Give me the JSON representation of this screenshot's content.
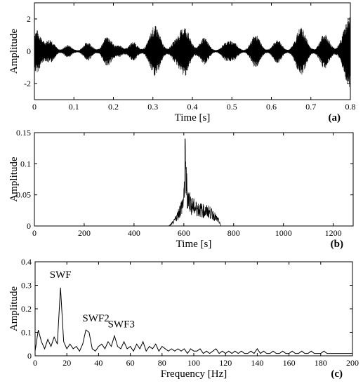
{
  "chart_data": [
    {
      "type": "line",
      "panel_label": "(a)",
      "xlabel": "Time [s]",
      "ylabel": "Amplitude",
      "xlim": [
        0,
        0.8
      ],
      "ylim": [
        -3,
        3
      ],
      "xticks": [
        "0",
        "0.1",
        "0.2",
        "0.3",
        "0.4",
        "0.5",
        "0.6",
        "0.7",
        "0.8"
      ],
      "yticks": [
        "-2",
        "0",
        "2"
      ],
      "bursts": [
        {
          "t": 0.005,
          "amp": 1.3
        },
        {
          "t": 0.04,
          "amp": 0.7
        },
        {
          "t": 0.085,
          "amp": 0.35
        },
        {
          "t": 0.135,
          "amp": 0.55
        },
        {
          "t": 0.185,
          "amp": 0.9
        },
        {
          "t": 0.215,
          "amp": 0.3
        },
        {
          "t": 0.25,
          "amp": 0.55
        },
        {
          "t": 0.305,
          "amp": 1.55
        },
        {
          "t": 0.355,
          "amp": 0.45
        },
        {
          "t": 0.38,
          "amp": 1.5
        },
        {
          "t": 0.43,
          "amp": 0.8
        },
        {
          "t": 0.485,
          "amp": 0.5
        },
        {
          "t": 0.505,
          "amp": 0.5
        },
        {
          "t": 0.56,
          "amp": 1.0
        },
        {
          "t": 0.615,
          "amp": 0.7
        },
        {
          "t": 0.675,
          "amp": 1.45
        },
        {
          "t": 0.735,
          "amp": 1.05
        },
        {
          "t": 0.798,
          "amp": 2.2
        }
      ]
    },
    {
      "type": "line",
      "panel_label": "(b)",
      "xlabel": "Time [s]",
      "ylabel": "Amplitude",
      "xlim": [
        0,
        1280
      ],
      "ylim": [
        0,
        0.15
      ],
      "xticks": [
        "0",
        "200",
        "400",
        "600",
        "800",
        "1000",
        "1200"
      ],
      "yticks": [
        "0",
        "0.05",
        "0.1",
        "0.15"
      ],
      "envelope": [
        [
          540,
          0
        ],
        [
          560,
          0.01
        ],
        [
          575,
          0.025
        ],
        [
          590,
          0.045
        ],
        [
          600,
          0.06
        ],
        [
          605,
          0.14
        ],
        [
          615,
          0.07
        ],
        [
          630,
          0.05
        ],
        [
          645,
          0.042
        ],
        [
          660,
          0.04
        ],
        [
          680,
          0.035
        ],
        [
          700,
          0.034
        ],
        [
          720,
          0.025
        ],
        [
          740,
          0.012
        ],
        [
          750,
          0
        ]
      ]
    },
    {
      "type": "line",
      "panel_label": "(c)",
      "xlabel": "Frequency [Hz]",
      "ylabel": "Amplitude",
      "xlim": [
        0,
        200
      ],
      "ylim": [
        0,
        0.4
      ],
      "xticks": [
        "0",
        "20",
        "40",
        "60",
        "80",
        "100",
        "120",
        "140",
        "160",
        "180",
        "200"
      ],
      "yticks": [
        "0",
        "0.1",
        "0.2",
        "0.3",
        "0.4"
      ],
      "annotations": [
        {
          "text": "SWF",
          "x": 16,
          "y": 0.29
        },
        {
          "text": "SWF2",
          "x": 33,
          "y": 0.11
        },
        {
          "text": "SWF3",
          "x": 49,
          "y": 0.085
        }
      ],
      "x": [
        0,
        2,
        4,
        6,
        8,
        10,
        12,
        14,
        16,
        18,
        20,
        22,
        24,
        26,
        28,
        30,
        32,
        34,
        36,
        38,
        40,
        42,
        44,
        46,
        48,
        50,
        52,
        54,
        56,
        58,
        60,
        62,
        64,
        66,
        68,
        70,
        72,
        74,
        76,
        78,
        80,
        82,
        84,
        86,
        88,
        90,
        92,
        94,
        96,
        98,
        100,
        102,
        104,
        106,
        108,
        110,
        112,
        114,
        116,
        118,
        120,
        122,
        124,
        126,
        128,
        130,
        132,
        134,
        136,
        138,
        140,
        142,
        144,
        146,
        148,
        150,
        152,
        154,
        156,
        158,
        160,
        162,
        164,
        166,
        168,
        170,
        172,
        174,
        176,
        178,
        180,
        182,
        184,
        186,
        188,
        190,
        192,
        194,
        196,
        198,
        200
      ],
      "y": [
        0.02,
        0.11,
        0.06,
        0.03,
        0.07,
        0.04,
        0.08,
        0.05,
        0.29,
        0.06,
        0.03,
        0.05,
        0.03,
        0.04,
        0.02,
        0.05,
        0.11,
        0.1,
        0.03,
        0.02,
        0.04,
        0.05,
        0.03,
        0.06,
        0.04,
        0.085,
        0.04,
        0.03,
        0.06,
        0.03,
        0.04,
        0.02,
        0.05,
        0.03,
        0.06,
        0.02,
        0.04,
        0.03,
        0.05,
        0.02,
        0.04,
        0.03,
        0.02,
        0.03,
        0.02,
        0.03,
        0.02,
        0.03,
        0.01,
        0.03,
        0.02,
        0.02,
        0.03,
        0.01,
        0.02,
        0.01,
        0.02,
        0.03,
        0.01,
        0.02,
        0.01,
        0.02,
        0.01,
        0.02,
        0.01,
        0.02,
        0.01,
        0.01,
        0.02,
        0.01,
        0.03,
        0.01,
        0.02,
        0.01,
        0.01,
        0.02,
        0.01,
        0.01,
        0.02,
        0.01,
        0.01,
        0.02,
        0.01,
        0.01,
        0.02,
        0.01,
        0.01,
        0.02,
        0.01,
        0.01,
        0.01,
        0.02,
        0.01,
        0.01,
        0.01,
        0.01,
        0.01,
        0.01,
        0.01,
        0.01,
        0.01
      ]
    }
  ]
}
